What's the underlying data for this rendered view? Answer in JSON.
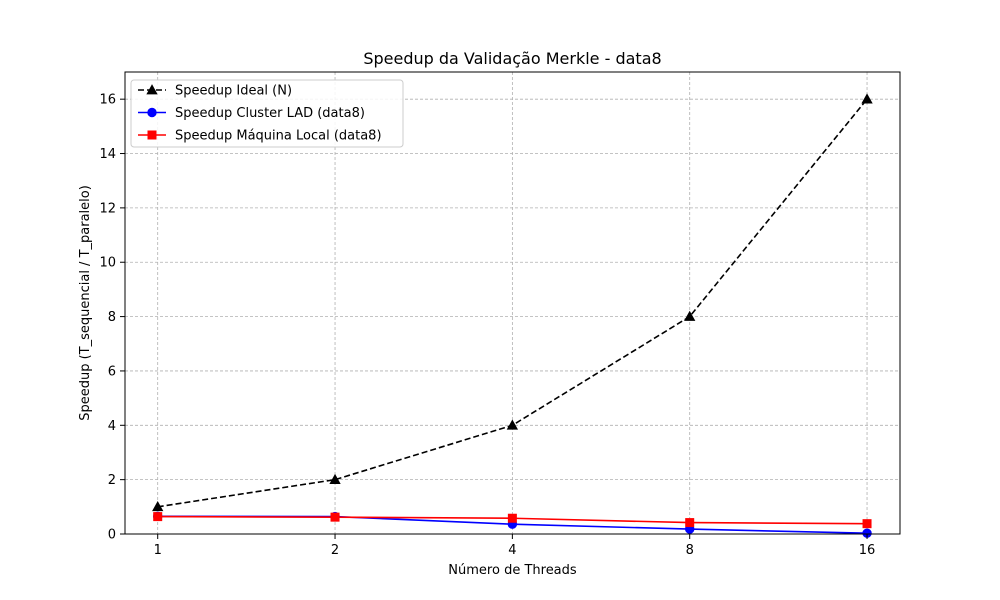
{
  "chart_data": {
    "type": "line",
    "title": "Speedup da Validação Merkle - data8",
    "xlabel": "Número de Threads",
    "ylabel": "Speedup (T_sequencial / T_paralelo)",
    "x": [
      1,
      2,
      4,
      8,
      16
    ],
    "x_scale": "log2",
    "xlim": [
      0.88,
      18.2
    ],
    "ylim": [
      0,
      17
    ],
    "yticks": [
      0,
      2,
      4,
      6,
      8,
      10,
      12,
      14,
      16
    ],
    "grid": true,
    "legend_position": "top-left",
    "series": [
      {
        "name": "Speedup Ideal (N)",
        "values": [
          1,
          2,
          4,
          8,
          16
        ],
        "color": "#000000",
        "line_style": "dashed",
        "marker": "triangle"
      },
      {
        "name": "Speedup Cluster LAD (data8)",
        "values": [
          0.65,
          0.64,
          0.36,
          0.18,
          0.03
        ],
        "color": "#0000ff",
        "line_style": "solid",
        "marker": "circle"
      },
      {
        "name": "Speedup Máquina Local (data8)",
        "values": [
          0.64,
          0.62,
          0.58,
          0.42,
          0.38
        ],
        "color": "#ff0000",
        "line_style": "solid",
        "marker": "square"
      }
    ]
  }
}
